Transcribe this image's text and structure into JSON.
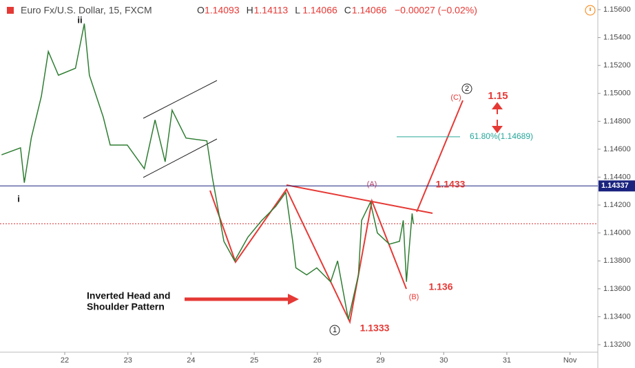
{
  "header": {
    "title": "Euro Fx/U.S. Dollar, 15, FXCM",
    "ohlc": [
      {
        "label": "O",
        "value": "1.14093"
      },
      {
        "label": "H",
        "value": "1.14113"
      },
      {
        "label": "L",
        "value": "1.14066"
      },
      {
        "label": "C",
        "value": "1.14066"
      }
    ],
    "change": "−0.00027 (−0.02%)"
  },
  "chart_data": {
    "type": "line",
    "series": [
      {
        "name": "EUR/USD",
        "color": "#2e7d32",
        "x": [
          -1.0,
          -0.7,
          -0.64,
          -0.53,
          -0.37,
          -0.26,
          -0.1,
          0.17,
          0.31,
          0.39,
          0.61,
          0.72,
          0.99,
          1.26,
          1.43,
          1.59,
          1.7,
          1.92,
          2.25,
          2.34,
          2.52,
          2.69,
          2.9,
          3.12,
          3.34,
          3.5,
          3.61,
          3.66,
          3.83,
          3.99,
          4.21,
          4.32,
          4.49,
          4.65,
          4.7,
          4.84,
          4.95,
          5.14,
          5.3,
          5.36,
          5.41,
          5.5,
          5.52
        ],
        "values": [
          1.1456,
          1.1461,
          1.1436,
          1.1468,
          1.1498,
          1.153,
          1.1513,
          1.1518,
          1.155,
          1.1513,
          1.1483,
          1.1463,
          1.1463,
          1.1446,
          1.1481,
          1.1451,
          1.1488,
          1.1468,
          1.1466,
          1.1439,
          1.1394,
          1.138,
          1.1397,
          1.1409,
          1.1419,
          1.1429,
          1.1394,
          1.1375,
          1.137,
          1.1375,
          1.1365,
          1.138,
          1.1338,
          1.137,
          1.1409,
          1.1422,
          1.14,
          1.1392,
          1.1394,
          1.1409,
          1.1365,
          1.1414,
          1.14066
        ]
      }
    ],
    "xlim": [
      -1.025,
      8.44
    ],
    "xticks": [
      {
        "value": 0,
        "label": "22"
      },
      {
        "value": 1,
        "label": "23"
      },
      {
        "value": 2,
        "label": "24"
      },
      {
        "value": 3,
        "label": "25"
      },
      {
        "value": 4,
        "label": "26"
      },
      {
        "value": 5,
        "label": "29"
      },
      {
        "value": 6,
        "label": "30"
      },
      {
        "value": 7,
        "label": "31"
      },
      {
        "value": 8,
        "label": "Nov"
      }
    ],
    "ylim": [
      1.13146,
      1.15669
    ],
    "yticks": [
      {
        "value": 1.132,
        "label": "1.13200"
      },
      {
        "value": 1.134,
        "label": "1.13400"
      },
      {
        "value": 1.136,
        "label": "1.13600"
      },
      {
        "value": 1.138,
        "label": "1.13800"
      },
      {
        "value": 1.14,
        "label": "1.14000"
      },
      {
        "value": 1.142,
        "label": "1.14200"
      },
      {
        "value": 1.144,
        "label": "1.14400"
      },
      {
        "value": 1.146,
        "label": "1.14600"
      },
      {
        "value": 1.148,
        "label": "1.14800"
      },
      {
        "value": 1.15,
        "label": "1.15000"
      },
      {
        "value": 1.152,
        "label": "1.15200"
      },
      {
        "value": 1.154,
        "label": "1.15400"
      },
      {
        "value": 1.156,
        "label": "1.15600"
      }
    ],
    "hlines": [
      {
        "value": 1.14337,
        "label": "1.14337",
        "color": "#1a237e"
      },
      {
        "value": 1.14066,
        "color": "#d32f2f"
      },
      {
        "value": 1.14689,
        "color": "#26a69a"
      }
    ],
    "annotations": [
      "ii",
      "i",
      "(A)",
      "(B)",
      "(C)",
      "1",
      "2",
      "1.1433",
      "1.136",
      "1.1333",
      "1.15",
      "61.80%(1.14689)",
      "Inverted Head and",
      "Shoulder Pattern"
    ]
  }
}
